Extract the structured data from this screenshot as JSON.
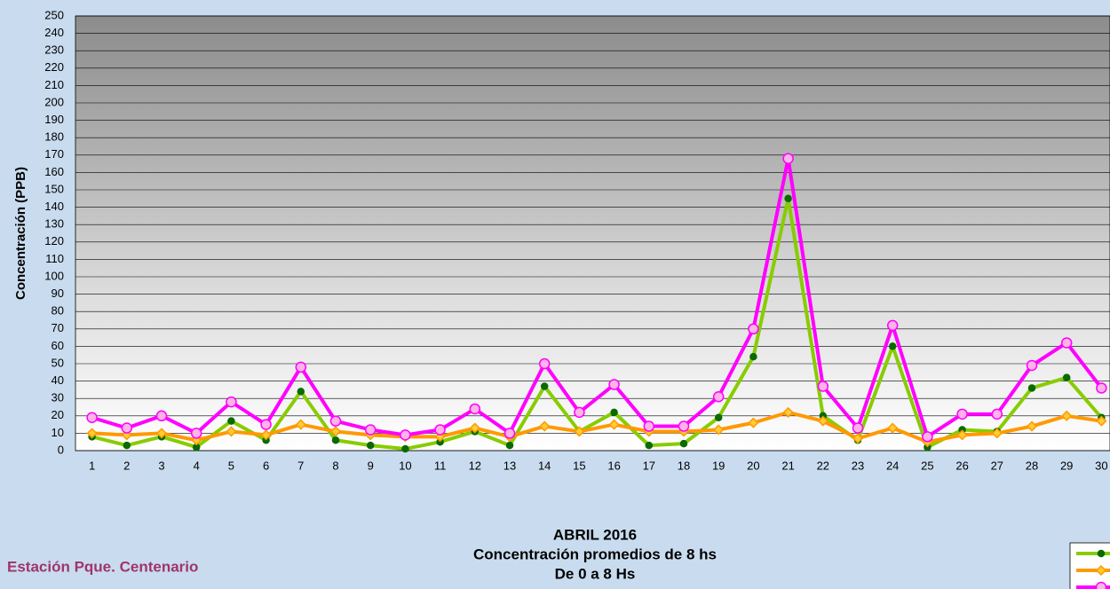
{
  "chart_data": {
    "type": "line",
    "title": "ABRIL 2016",
    "subtitle": "Concentración promedios de 8 hs",
    "subtitle2": "De 0 a 8 Hs",
    "station": "Estación Pque. Centenario",
    "y_label": "Concentración  (PPB)",
    "categories": [
      "1",
      "2",
      "3",
      "4",
      "5",
      "6",
      "7",
      "8",
      "9",
      "10",
      "11",
      "12",
      "13",
      "14",
      "15",
      "16",
      "17",
      "18",
      "19",
      "20",
      "21",
      "22",
      "23",
      "24",
      "25",
      "26",
      "27",
      "28",
      "29",
      "30"
    ],
    "series": [
      {
        "color": "#88cc00",
        "marker_color": "#0a6a00",
        "marker": "circle",
        "values": [
          8,
          3,
          8,
          2,
          17,
          6,
          34,
          6,
          3,
          1,
          5,
          11,
          3,
          37,
          11,
          22,
          3,
          4,
          19,
          54,
          145,
          20,
          6,
          60,
          2,
          12,
          11,
          36,
          42,
          19
        ]
      },
      {
        "color": "#ff9900",
        "marker_color": "#ffcc33",
        "marker": "diamond",
        "values": [
          10,
          9,
          10,
          6,
          11,
          9,
          15,
          11,
          9,
          8,
          8,
          13,
          8,
          14,
          11,
          15,
          11,
          11,
          12,
          16,
          22,
          17,
          7,
          13,
          5,
          9,
          10,
          14,
          20,
          17
        ]
      },
      {
        "color": "#ff00ff",
        "marker_color": "#ffb3e6",
        "marker": "circle",
        "values": [
          19,
          13,
          20,
          10,
          28,
          15,
          48,
          17,
          12,
          9,
          12,
          24,
          10,
          50,
          22,
          38,
          14,
          14,
          31,
          70,
          168,
          37,
          13,
          72,
          8,
          21,
          21,
          49,
          62,
          36
        ]
      }
    ],
    "ylim": [
      0,
      250
    ],
    "yticks": [
      0,
      10,
      20,
      30,
      40,
      50,
      60,
      70,
      80,
      90,
      100,
      110,
      120,
      130,
      140,
      150,
      160,
      170,
      180,
      190,
      200,
      210,
      220,
      230,
      240,
      250
    ],
    "grid": true
  }
}
